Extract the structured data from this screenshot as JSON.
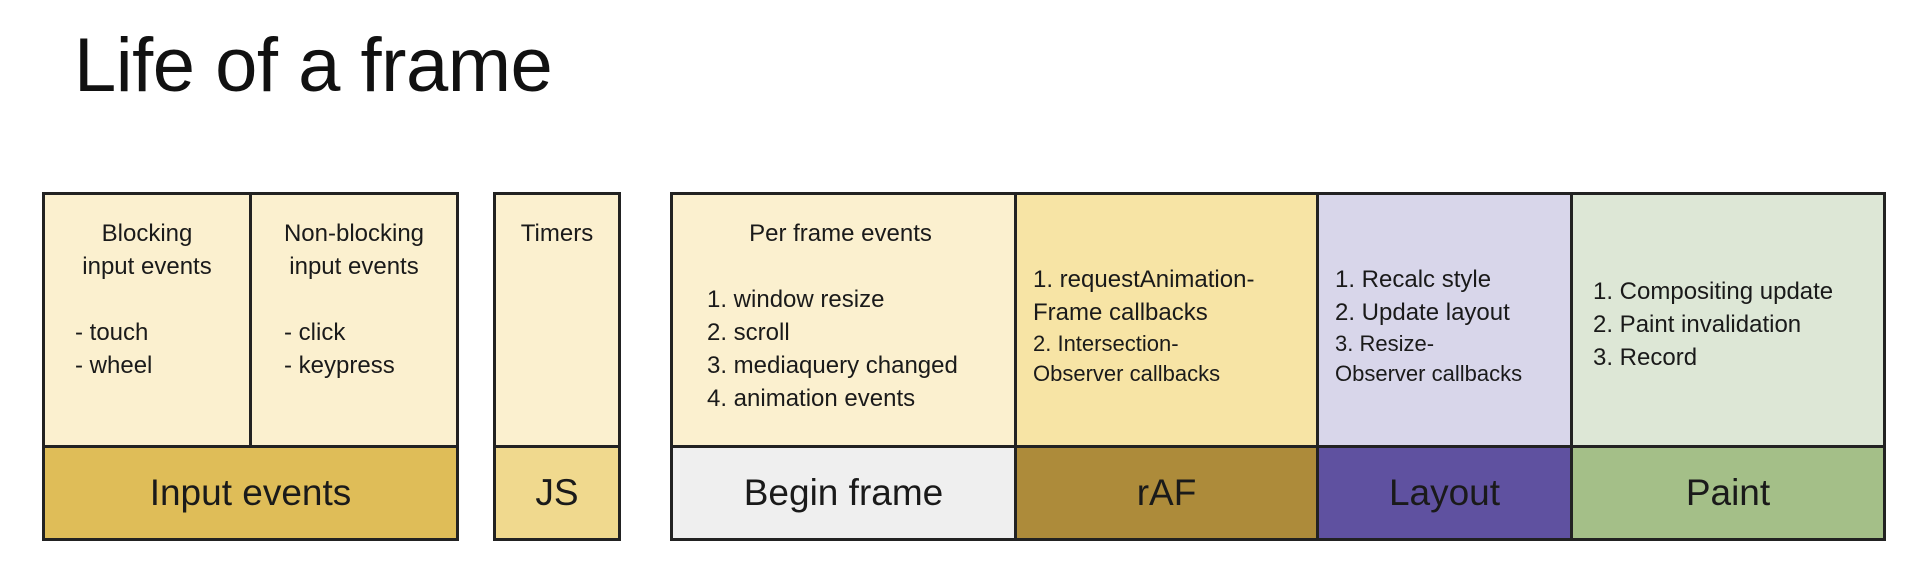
{
  "title": "Life of a frame",
  "groups": {
    "input": {
      "blocking": {
        "lines": [
          "Blocking",
          "input events",
          "",
          "- touch",
          "- wheel"
        ]
      },
      "nonblocking": {
        "lines": [
          "Non-blocking",
          "input events",
          "",
          "- click",
          "- keypress"
        ]
      },
      "label": "Input events",
      "colors": {
        "top": "#fbf0cf",
        "bottom": "#dfbd58"
      }
    },
    "js": {
      "top": {
        "lines": [
          "Timers"
        ]
      },
      "label": "JS",
      "colors": {
        "top": "#fbf0cf",
        "bottom": "#f0d98e"
      }
    },
    "begin_frame": {
      "top": {
        "heading": "Per frame events",
        "items": [
          "1. window resize",
          "2. scroll",
          "3. mediaquery changed",
          "4. animation events"
        ]
      },
      "label": "Begin frame",
      "colors": {
        "top": "#fbf0cf",
        "bottom": "#efefef"
      }
    },
    "raf": {
      "top": {
        "lines": [
          "1. requestAnimation-",
          "Frame callbacks",
          "2. Intersection-",
          "Observer callbacks"
        ]
      },
      "label": "rAF",
      "colors": {
        "top": "#f7e4a5",
        "bottom": "#ad8b3a"
      }
    },
    "layout": {
      "top": {
        "lines": [
          "1. Recalc style",
          "2. Update layout",
          "3. Resize-",
          "Observer callbacks"
        ]
      },
      "label": "Layout",
      "colors": {
        "top": "#d8d6ea",
        "bottom": "#5f51a0"
      }
    },
    "paint": {
      "top": {
        "lines": [
          "1. Compositing update",
          "2. Paint invalidation",
          "3. Record"
        ]
      },
      "label": "Paint",
      "colors": {
        "top": "#dde7d6",
        "bottom": "#a4bf88"
      }
    }
  }
}
